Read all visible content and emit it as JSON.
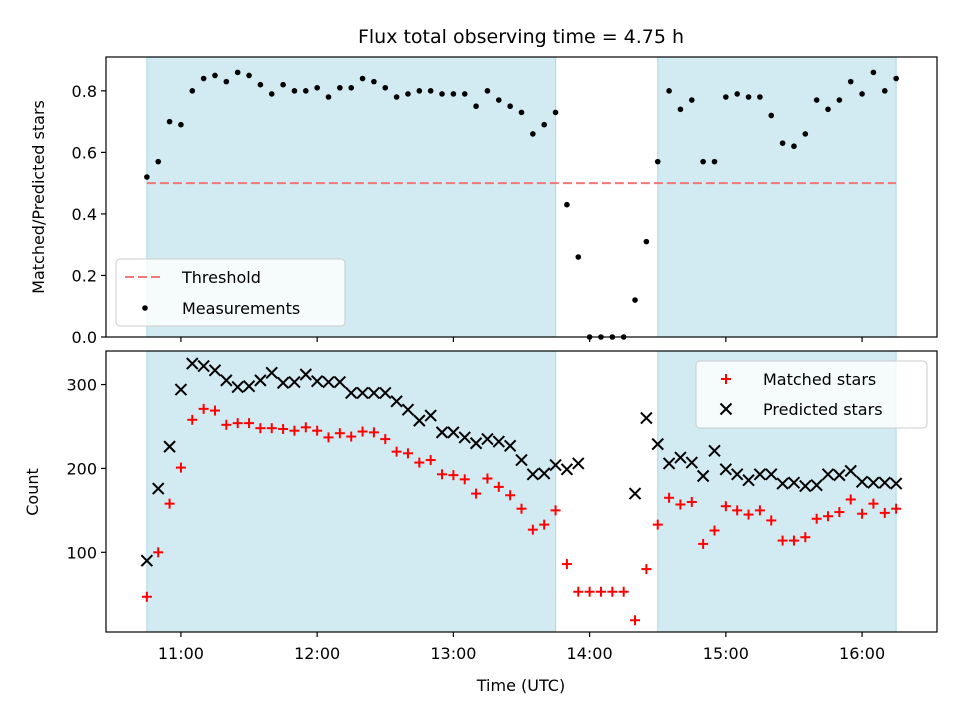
{
  "chart_data": [
    {
      "type": "scatter",
      "title": "Flux total observing time = 4.75 h",
      "ylabel": "Matched/Predicted stars",
      "ylim": [
        0,
        0.91
      ],
      "xlim": [
        "10:27",
        "16:33"
      ],
      "yticks": [
        "0.0",
        "0.2",
        "0.4",
        "0.6",
        "0.8"
      ],
      "shaded_intervals": [
        [
          "10:45",
          "13:45"
        ],
        [
          "14:30",
          "16:15"
        ]
      ],
      "shade_color": "#add8e6",
      "threshold": {
        "label": "Threshold",
        "value": 0.5,
        "color": "#f07878"
      },
      "legend_position": "lower-left",
      "series": [
        {
          "name": "Measurements",
          "color": "#000000",
          "marker": "dot",
          "x": [
            "10:45",
            "10:50",
            "10:55",
            "11:00",
            "11:05",
            "11:10",
            "11:15",
            "11:20",
            "11:25",
            "11:30",
            "11:35",
            "11:40",
            "11:45",
            "11:50",
            "11:55",
            "12:00",
            "12:05",
            "12:10",
            "12:15",
            "12:20",
            "12:25",
            "12:30",
            "12:35",
            "12:40",
            "12:45",
            "12:50",
            "12:55",
            "13:00",
            "13:05",
            "13:10",
            "13:15",
            "13:20",
            "13:25",
            "13:30",
            "13:35",
            "13:40",
            "13:45",
            "13:50",
            "13:55",
            "14:00",
            "14:05",
            "14:10",
            "14:15",
            "14:20",
            "14:25",
            "14:30",
            "14:35",
            "14:40",
            "14:45",
            "14:50",
            "14:55",
            "15:00",
            "15:05",
            "15:10",
            "15:15",
            "15:20",
            "15:25",
            "15:30",
            "15:35",
            "15:40",
            "15:45",
            "15:50",
            "15:55",
            "16:00",
            "16:05",
            "16:10",
            "16:15"
          ],
          "y": [
            0.52,
            0.57,
            0.7,
            0.69,
            0.8,
            0.84,
            0.85,
            0.83,
            0.86,
            0.85,
            0.82,
            0.79,
            0.82,
            0.8,
            0.8,
            0.81,
            0.78,
            0.81,
            0.81,
            0.84,
            0.83,
            0.81,
            0.78,
            0.79,
            0.8,
            0.8,
            0.79,
            0.79,
            0.79,
            0.75,
            0.8,
            0.77,
            0.75,
            0.73,
            0.66,
            0.69,
            0.73,
            0.43,
            0.26,
            0.0,
            0.0,
            0.0,
            0.0,
            0.12,
            0.31,
            0.57,
            0.8,
            0.74,
            0.77,
            0.57,
            0.57,
            0.78,
            0.79,
            0.78,
            0.78,
            0.72,
            0.63,
            0.62,
            0.66,
            0.77,
            0.74,
            0.77,
            0.83,
            0.79,
            0.86,
            0.8,
            0.84
          ]
        }
      ]
    },
    {
      "type": "scatter",
      "xlabel": "Time (UTC)",
      "ylabel": "Count",
      "ylim": [
        5,
        340
      ],
      "xlim": [
        "10:27",
        "16:33"
      ],
      "xticks": [
        "11:00",
        "12:00",
        "13:00",
        "14:00",
        "15:00",
        "16:00"
      ],
      "yticks": [
        "100",
        "200",
        "300"
      ],
      "legend_position": "upper-right",
      "series": [
        {
          "name": "Matched stars",
          "color": "#ff0000",
          "marker": "plus",
          "x": [
            "10:45",
            "10:50",
            "10:55",
            "11:00",
            "11:05",
            "11:10",
            "11:15",
            "11:20",
            "11:25",
            "11:30",
            "11:35",
            "11:40",
            "11:45",
            "11:50",
            "11:55",
            "12:00",
            "12:05",
            "12:10",
            "12:15",
            "12:20",
            "12:25",
            "12:30",
            "12:35",
            "12:40",
            "12:45",
            "12:50",
            "12:55",
            "13:00",
            "13:05",
            "13:10",
            "13:15",
            "13:20",
            "13:25",
            "13:30",
            "13:35",
            "13:40",
            "13:45",
            "13:50",
            "13:55",
            "14:00",
            "14:05",
            "14:10",
            "14:15",
            "14:20",
            "14:25",
            "14:30",
            "14:35",
            "14:40",
            "14:45",
            "14:50",
            "14:55",
            "15:00",
            "15:05",
            "15:10",
            "15:15",
            "15:20",
            "15:25",
            "15:30",
            "15:35",
            "15:40",
            "15:45",
            "15:50",
            "15:55",
            "16:00",
            "16:05",
            "16:10",
            "16:15"
          ],
          "y": [
            47,
            100,
            158,
            201,
            258,
            271,
            269,
            252,
            254,
            254,
            248,
            248,
            247,
            245,
            249,
            245,
            237,
            242,
            238,
            244,
            243,
            235,
            220,
            218,
            207,
            210,
            193,
            192,
            187,
            170,
            188,
            178,
            168,
            152,
            127,
            133,
            150,
            86,
            53,
            53,
            53,
            53,
            53,
            19,
            80,
            133,
            165,
            157,
            160,
            110,
            126,
            155,
            150,
            145,
            150,
            138,
            114,
            114,
            118,
            140,
            143,
            148,
            163,
            146,
            158,
            147,
            152
          ]
        },
        {
          "name": "Predicted stars",
          "color": "#000000",
          "marker": "x",
          "x": [
            "10:45",
            "10:50",
            "10:55",
            "11:00",
            "11:05",
            "11:10",
            "11:15",
            "11:20",
            "11:25",
            "11:30",
            "11:35",
            "11:40",
            "11:45",
            "11:50",
            "11:55",
            "12:00",
            "12:05",
            "12:10",
            "12:15",
            "12:20",
            "12:25",
            "12:30",
            "12:35",
            "12:40",
            "12:45",
            "12:50",
            "12:55",
            "13:00",
            "13:05",
            "13:10",
            "13:15",
            "13:20",
            "13:25",
            "13:30",
            "13:35",
            "13:40",
            "13:45",
            "13:50",
            "13:55",
            "14:20",
            "14:25",
            "14:30",
            "14:35",
            "14:40",
            "14:45",
            "14:50",
            "14:55",
            "15:00",
            "15:05",
            "15:10",
            "15:15",
            "15:20",
            "15:25",
            "15:30",
            "15:35",
            "15:40",
            "15:45",
            "15:50",
            "15:55",
            "16:00",
            "16:05",
            "16:10",
            "16:15"
          ],
          "y": [
            90,
            176,
            226,
            294,
            325,
            322,
            317,
            305,
            297,
            298,
            305,
            314,
            302,
            303,
            312,
            304,
            303,
            303,
            290,
            290,
            290,
            290,
            280,
            270,
            257,
            263,
            243,
            243,
            237,
            230,
            235,
            232,
            227,
            210,
            193,
            194,
            204,
            199,
            206,
            170,
            260,
            229,
            206,
            213,
            207,
            191,
            221,
            199,
            193,
            186,
            193,
            193,
            182,
            183,
            179,
            180,
            193,
            192,
            197,
            184,
            183,
            183,
            182
          ]
        }
      ]
    }
  ]
}
